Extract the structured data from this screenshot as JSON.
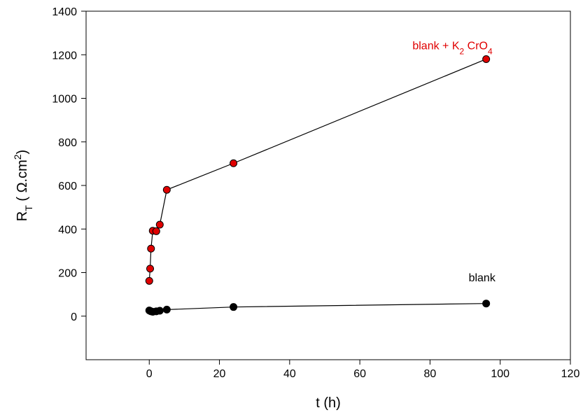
{
  "chart_data": {
    "type": "scatter",
    "xlabel": "t (h)",
    "ylabel": {
      "base": "R",
      "sub": "T",
      "mid": " ( Ω.cm",
      "sup": "2",
      "end": ")"
    },
    "xlim": [
      -18,
      120
    ],
    "ylim": [
      -200,
      1400
    ],
    "x_ticks": [
      0,
      20,
      40,
      60,
      80,
      100,
      120
    ],
    "y_ticks": [
      0,
      200,
      400,
      600,
      800,
      1000,
      1200,
      1400
    ],
    "grid": false,
    "series": [
      {
        "name": "blank + K2 CrO4",
        "color": "#e00000",
        "label": {
          "parts": [
            {
              "text": "blank + K",
              "style": "normal"
            },
            {
              "text": "2",
              "style": "sub"
            },
            {
              "text": " CrO",
              "style": "normal"
            },
            {
              "text": "4",
              "style": "sub"
            }
          ],
          "anchor": {
            "x": 75,
            "y": 1225
          }
        },
        "x": [
          0,
          0.25,
          0.5,
          1,
          2,
          3,
          5,
          24,
          96
        ],
        "y": [
          162,
          218,
          310,
          392,
          390,
          420,
          580,
          702,
          1180
        ]
      },
      {
        "name": "blank",
        "color": "#000000",
        "label": {
          "parts": [
            {
              "text": "blank",
              "style": "normal"
            }
          ],
          "anchor": {
            "x": 91,
            "y": 160
          }
        },
        "x": [
          0,
          0.25,
          0.5,
          1,
          2,
          3,
          5,
          24,
          96
        ],
        "y": [
          26,
          24,
          22,
          20,
          22,
          25,
          30,
          42,
          58
        ]
      }
    ]
  }
}
